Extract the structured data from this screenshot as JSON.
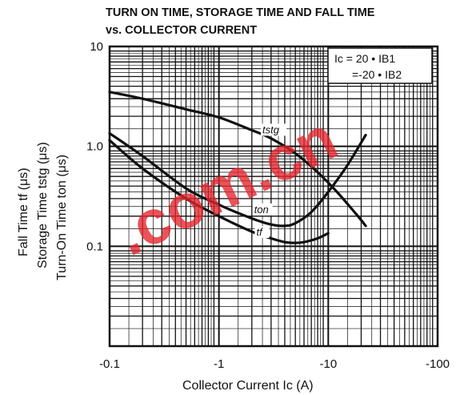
{
  "chart_data": {
    "type": "line",
    "title_line1": "TURN ON TIME, STORAGE TIME AND FALL TIME",
    "title_line2": "vs. COLLECTOR CURRENT",
    "xlabel": "Collector Current  Ic  (A)",
    "ylabel_lines": [
      "Fall Time  tf  (μs)",
      "Storage Time  tstg  (μs)",
      "Turn-On Time  ton  (μs)"
    ],
    "x_scale": "log",
    "y_scale": "log",
    "xlim": [
      -0.1,
      -100
    ],
    "ylim": [
      0.01,
      10
    ],
    "x_tick_labels": [
      "-0.1",
      "-1",
      "-10",
      "-100"
    ],
    "y_tick_labels": [
      "10",
      "1.0",
      "0.1"
    ],
    "legend_lines": [
      "Ic = 20 • IB1",
      "=-20 • IB2"
    ],
    "grid": true,
    "watermark": ".com.cn",
    "series": [
      {
        "name": "tstg",
        "x": [
          -0.1,
          -0.2,
          -0.5,
          -1,
          -2,
          -3,
          -5,
          -8,
          -12,
          -18,
          -22
        ],
        "y": [
          3.5,
          3.0,
          2.35,
          1.95,
          1.45,
          1.2,
          0.85,
          0.55,
          0.35,
          0.21,
          0.16
        ]
      },
      {
        "name": "ton",
        "x": [
          -0.1,
          -0.2,
          -0.5,
          -1,
          -2,
          -3,
          -4,
          -5,
          -7,
          -10,
          -15,
          -22
        ],
        "y": [
          1.35,
          0.8,
          0.38,
          0.26,
          0.19,
          0.165,
          0.16,
          0.17,
          0.22,
          0.35,
          0.65,
          1.3
        ]
      },
      {
        "name": "tf",
        "x": [
          -0.1,
          -0.2,
          -0.5,
          -1,
          -2,
          -3,
          -4,
          -5,
          -6,
          -8,
          -10
        ],
        "y": [
          1.15,
          0.6,
          0.3,
          0.2,
          0.14,
          0.12,
          0.11,
          0.108,
          0.11,
          0.12,
          0.135
        ]
      }
    ]
  }
}
